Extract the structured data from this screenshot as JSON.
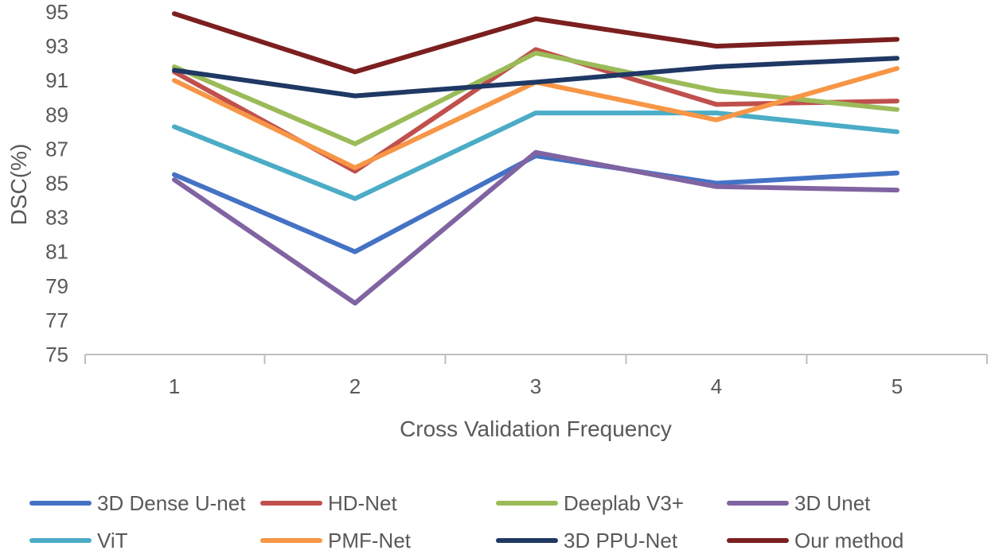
{
  "chart_data": {
    "type": "line",
    "title": "",
    "xlabel": "Cross Validation Frequency",
    "ylabel": "DSC(%)",
    "x": [
      1,
      2,
      3,
      4,
      5
    ],
    "categories": [
      "1",
      "2",
      "3",
      "4",
      "5"
    ],
    "ylim": [
      75,
      95
    ],
    "yticks": [
      75,
      77,
      79,
      81,
      83,
      85,
      87,
      89,
      91,
      93,
      95
    ],
    "grid": false,
    "legend_position": "bottom",
    "series": [
      {
        "name": "3D Dense U-net",
        "color": "#4472C4",
        "values": [
          85.5,
          81.0,
          86.6,
          85.0,
          85.6
        ]
      },
      {
        "name": "HD-Net",
        "color": "#C0504D",
        "values": [
          91.5,
          85.7,
          92.8,
          89.6,
          89.8
        ]
      },
      {
        "name": "Deeplab V3+",
        "color": "#9BBB59",
        "values": [
          91.8,
          87.3,
          92.6,
          90.4,
          89.3
        ]
      },
      {
        "name": "3D Unet",
        "color": "#8064A2",
        "values": [
          85.2,
          78.0,
          86.8,
          84.8,
          84.6
        ]
      },
      {
        "name": "ViT",
        "color": "#4BACC6",
        "values": [
          88.3,
          84.1,
          89.1,
          89.1,
          88.0
        ]
      },
      {
        "name": "PMF-Net",
        "color": "#F79646",
        "values": [
          91.0,
          85.9,
          90.9,
          88.7,
          91.7
        ]
      },
      {
        "name": "3D PPU-Net",
        "color": "#1F3864",
        "values": [
          91.6,
          90.1,
          90.9,
          91.8,
          92.3
        ]
      },
      {
        "name": "Our method",
        "color": "#7B1F1F",
        "values": [
          94.9,
          91.5,
          94.6,
          93.0,
          93.4
        ]
      }
    ]
  }
}
